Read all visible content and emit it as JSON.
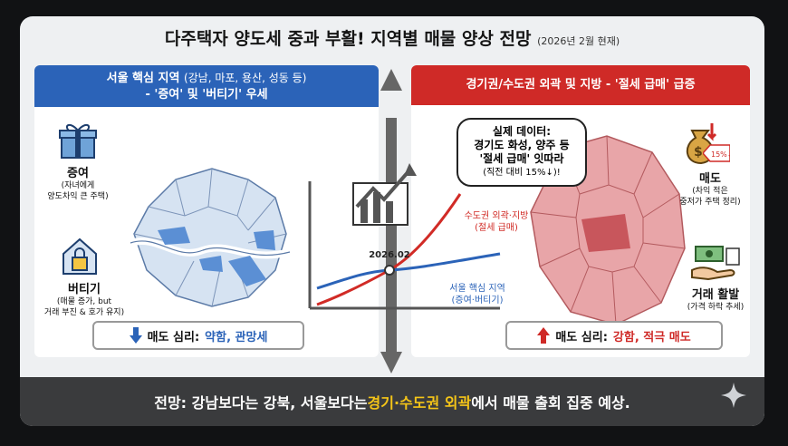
{
  "title": {
    "main": "다주택자 양도세 중과 부활! 지역별 매물 양상 전망",
    "sub": "(2026년 2월 현재)"
  },
  "left_panel": {
    "header_line1": "서울 핵심 지역",
    "header_note": "(강남, 마포, 용산, 성동 등)",
    "header_line2": "- '증여' 및 '버티기' 우세",
    "gift": {
      "label": "증여",
      "desc1": "(자녀에게",
      "desc2": "양도차익 큰 주택)"
    },
    "hold": {
      "label": "버티기",
      "desc1": "(매물 증가, but",
      "desc2": "거래 부진 & 호가 유지)"
    },
    "sentiment_label": "매도 심리:",
    "sentiment_value": "약함, 관망세",
    "map_icon": "seoul-map-icon"
  },
  "right_panel": {
    "header": "경기권/수도권 외곽 및 지방 - '절세 급매' 급증",
    "sell": {
      "label": "매도",
      "desc1": "(차익 적은",
      "desc2": "중저가 주택 정리)"
    },
    "trade": {
      "label": "거래 활발",
      "desc1": "(가격 하락 추세)"
    },
    "sentiment_label": "매도 심리:",
    "sentiment_value": "강함, 적극 매도",
    "map_icon": "gyeonggi-map-icon"
  },
  "bubble": {
    "line1": "실제 데이터:",
    "line2": "경기도 화성, 양주 등",
    "line3": "'절세 급매' 잇따라",
    "line4": "(직전 대비 15%↓)!"
  },
  "chart": {
    "point_label": "2026.02",
    "red_line_label1": "수도권 외곽·지방",
    "red_line_label2": "(절세 급매)",
    "blue_line_label1": "서울 핵심 지역",
    "blue_line_label2": "(증여·버티기)",
    "colors": {
      "red": "#d12b26",
      "blue": "#2b63b8"
    }
  },
  "badge_percent": "15%↓",
  "footer": {
    "pre": "전망: 강남보다는 강북, 서울보다는 ",
    "highlight": "경기·수도권 외곽",
    "post": "에서 매물 출회 집중 예상."
  }
}
